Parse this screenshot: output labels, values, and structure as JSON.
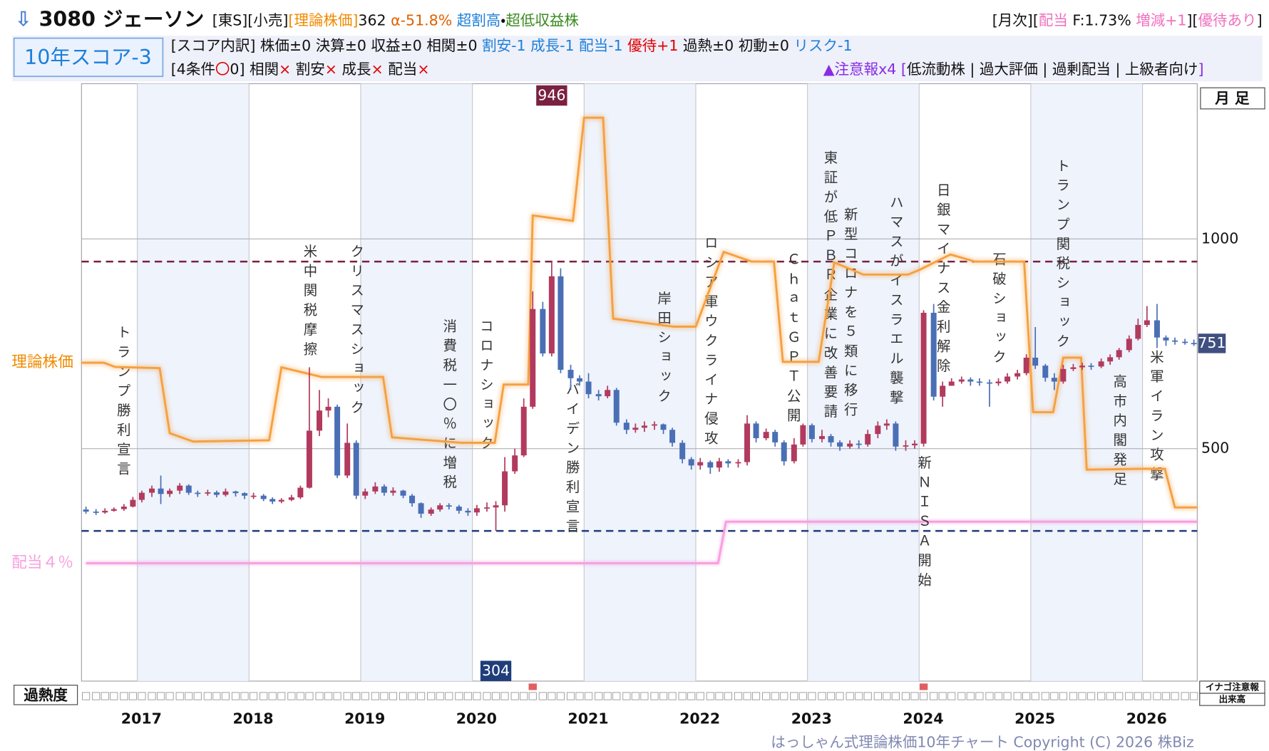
{
  "header": {
    "title": [
      {
        "text": "⇩",
        "color": "#4a7fd0"
      },
      {
        "text": " 3080 ジェーソン",
        "color": "#111111"
      }
    ],
    "tags": [
      {
        "text": "[東S][小売]",
        "color": "#111111"
      },
      {
        "text": "[理論株価]",
        "color": "#f08a00"
      },
      {
        "text": "362 ",
        "color": "#111111"
      },
      {
        "text": "α-51.8% ",
        "color": "#e06000"
      },
      {
        "text": "超割高",
        "color": "#1e7fd8"
      },
      {
        "text": "・",
        "color": "#111111"
      },
      {
        "text": "超低収益株",
        "color": "#3a8a20"
      }
    ],
    "right": [
      {
        "text": "[月次][",
        "color": "#111111"
      },
      {
        "text": "配当",
        "color": "#f070c0"
      },
      {
        "text": " F:1.73% ",
        "color": "#111111"
      },
      {
        "text": "増減+1",
        "color": "#f070c0"
      },
      {
        "text": "][",
        "color": "#111111"
      },
      {
        "text": "優待あり",
        "color": "#f070c0"
      },
      {
        "text": "]",
        "color": "#111111"
      }
    ]
  },
  "score": {
    "badge": "10年スコア-3",
    "line1": [
      {
        "text": "[スコア内訳] 株価±0 決算±0 収益±0 相関±0 ",
        "color": "#111111"
      },
      {
        "text": "割安-1 成長-1 配当-1 ",
        "color": "#1e7fd8"
      },
      {
        "text": "優待+1 ",
        "color": "#e00000"
      },
      {
        "text": "過熱±0 初動±0 ",
        "color": "#111111"
      },
      {
        "text": "リスク-1",
        "color": "#1e7fd8"
      }
    ],
    "line2": [
      {
        "text": "[4条件",
        "color": "#111111"
      },
      {
        "text": "〇",
        "color": "#e00000"
      },
      {
        "text": "0] 相関",
        "color": "#111111"
      },
      {
        "text": "×",
        "color": "#e00000"
      },
      {
        "text": " 割安",
        "color": "#111111"
      },
      {
        "text": "×",
        "color": "#e00000"
      },
      {
        "text": " 成長",
        "color": "#111111"
      },
      {
        "text": "×",
        "color": "#e00000"
      },
      {
        "text": " 配当",
        "color": "#111111"
      },
      {
        "text": "×",
        "color": "#e00000"
      }
    ],
    "warning": [
      {
        "text": "▲注意報x4 [",
        "color": "#8a2be2"
      },
      {
        "text": "低流動株 | 過大評価 | 過剰配当 | 上級者向け",
        "color": "#111111"
      },
      {
        "text": "]",
        "color": "#8a2be2"
      }
    ]
  },
  "chart_data": {
    "type": "candlestick",
    "period_label": "月 足",
    "x": [
      2016.54,
      2016.63,
      2016.71,
      2016.79,
      2016.88,
      2016.96,
      2017.04,
      2017.13,
      2017.21,
      2017.29,
      2017.38,
      2017.46,
      2017.54,
      2017.63,
      2017.71,
      2017.79,
      2017.88,
      2017.96,
      2018.04,
      2018.13,
      2018.21,
      2018.29,
      2018.38,
      2018.46,
      2018.54,
      2018.63,
      2018.71,
      2018.79,
      2018.88,
      2018.96,
      2019.04,
      2019.13,
      2019.21,
      2019.29,
      2019.38,
      2019.46,
      2019.54,
      2019.63,
      2019.71,
      2019.79,
      2019.88,
      2019.96,
      2020.04,
      2020.13,
      2020.21,
      2020.29,
      2020.38,
      2020.46,
      2020.54,
      2020.63,
      2020.71,
      2020.79,
      2020.88,
      2020.96,
      2021.04,
      2021.13,
      2021.21,
      2021.29,
      2021.38,
      2021.46,
      2021.54,
      2021.63,
      2021.71,
      2021.79,
      2021.88,
      2021.96,
      2022.04,
      2022.13,
      2022.21,
      2022.29,
      2022.38,
      2022.46,
      2022.54,
      2022.63,
      2022.71,
      2022.79,
      2022.88,
      2022.96,
      2023.04,
      2023.13,
      2023.21,
      2023.29,
      2023.38,
      2023.46,
      2023.54,
      2023.63,
      2023.71,
      2023.79,
      2023.88,
      2023.96,
      2024.04,
      2024.13,
      2024.21,
      2024.29,
      2024.38,
      2024.46,
      2024.54,
      2024.63,
      2024.71,
      2024.79,
      2024.88,
      2024.96,
      2025.04,
      2025.13,
      2025.21,
      2025.29,
      2025.38,
      2025.46,
      2025.54,
      2025.63,
      2025.71,
      2025.79,
      2025.88,
      2025.96,
      2026.04,
      2026.13,
      2026.21,
      2026.29,
      2026.38,
      2026.46
    ],
    "open": [
      355,
      350,
      348,
      352,
      356,
      362,
      378,
      395,
      405,
      392,
      400,
      412,
      395,
      393,
      396,
      390,
      398,
      394,
      388,
      388,
      380,
      374,
      378,
      384,
      407,
      543,
      591,
      600,
      436,
      514,
      388,
      398,
      410,
      395,
      400,
      388,
      370,
      345,
      355,
      365,
      362,
      352,
      348,
      358,
      360,
      365,
      446,
      484,
      600,
      833,
      727,
      911,
      688,
      668,
      660,
      630,
      625,
      640,
      562,
      545,
      550,
      555,
      558,
      545,
      514,
      475,
      460,
      468,
      455,
      470,
      465,
      468,
      560,
      525,
      540,
      515,
      470,
      510,
      556,
      523,
      530,
      515,
      505,
      512,
      510,
      535,
      555,
      560,
      505,
      508,
      512,
      824,
      624,
      650,
      660,
      665,
      660,
      658,
      656,
      660,
      672,
      680,
      717,
      698,
      669,
      660,
      690,
      694,
      698,
      696,
      708,
      718,
      735,
      762,
      795,
      806,
      765,
      758,
      755,
      752
    ],
    "high": [
      362,
      356,
      358,
      360,
      368,
      385,
      400,
      412,
      436,
      405,
      418,
      415,
      400,
      402,
      400,
      405,
      400,
      396,
      395,
      392,
      384,
      382,
      390,
      412,
      694,
      640,
      620,
      605,
      560,
      520,
      405,
      420,
      415,
      408,
      402,
      392,
      372,
      360,
      370,
      370,
      366,
      358,
      366,
      372,
      375,
      480,
      500,
      620,
      875,
      850,
      946,
      930,
      700,
      675,
      680,
      640,
      650,
      645,
      570,
      560,
      565,
      565,
      560,
      550,
      520,
      480,
      478,
      472,
      478,
      475,
      475,
      580,
      565,
      548,
      545,
      520,
      525,
      560,
      560,
      545,
      535,
      520,
      520,
      520,
      545,
      565,
      570,
      565,
      520,
      520,
      830,
      845,
      660,
      668,
      672,
      670,
      668,
      665,
      668,
      680,
      688,
      725,
      790,
      702,
      680,
      700,
      702,
      705,
      704,
      715,
      725,
      740,
      770,
      810,
      840,
      845,
      770,
      765,
      762,
      760
    ],
    "low": [
      345,
      342,
      345,
      350,
      352,
      360,
      372,
      385,
      368,
      385,
      392,
      390,
      385,
      388,
      384,
      386,
      386,
      380,
      380,
      375,
      368,
      370,
      375,
      380,
      405,
      530,
      575,
      430,
      430,
      380,
      380,
      392,
      388,
      388,
      382,
      362,
      335,
      340,
      350,
      355,
      345,
      340,
      340,
      350,
      304,
      350,
      440,
      480,
      595,
      720,
      720,
      680,
      640,
      650,
      620,
      615,
      620,
      555,
      535,
      538,
      540,
      545,
      535,
      505,
      465,
      450,
      450,
      440,
      445,
      455,
      455,
      460,
      515,
      520,
      505,
      460,
      465,
      505,
      515,
      515,
      505,
      495,
      500,
      500,
      505,
      525,
      545,
      495,
      495,
      500,
      505,
      615,
      600,
      650,
      655,
      650,
      650,
      600,
      650,
      655,
      665,
      675,
      690,
      660,
      640,
      655,
      685,
      688,
      688,
      692,
      700,
      712,
      730,
      758,
      790,
      740,
      745,
      748,
      748,
      745
    ],
    "close": [
      350,
      348,
      352,
      356,
      362,
      378,
      395,
      405,
      392,
      400,
      412,
      395,
      393,
      396,
      390,
      398,
      394,
      388,
      388,
      380,
      374,
      378,
      384,
      407,
      543,
      591,
      600,
      436,
      514,
      388,
      398,
      410,
      395,
      400,
      388,
      370,
      345,
      355,
      365,
      362,
      352,
      348,
      358,
      360,
      365,
      446,
      484,
      600,
      833,
      727,
      911,
      688,
      668,
      660,
      630,
      625,
      640,
      562,
      545,
      550,
      555,
      558,
      545,
      514,
      475,
      460,
      468,
      455,
      470,
      465,
      468,
      560,
      525,
      540,
      515,
      470,
      510,
      556,
      523,
      530,
      515,
      505,
      512,
      510,
      535,
      555,
      560,
      505,
      508,
      512,
      824,
      624,
      650,
      660,
      665,
      660,
      658,
      656,
      660,
      672,
      680,
      717,
      698,
      669,
      660,
      690,
      694,
      698,
      696,
      708,
      718,
      735,
      762,
      795,
      806,
      765,
      758,
      755,
      752,
      751
    ],
    "up_color": "#b23a5e",
    "down_color": "#4a6fb5",
    "xlim": [
      2016.5,
      2026.49
    ],
    "ylim": [
      -54,
      1370
    ],
    "xticks": [
      2017,
      2018,
      2019,
      2020,
      2021,
      2022,
      2023,
      2024,
      2025,
      2026
    ],
    "yticks": [
      500,
      1000
    ],
    "theory": {
      "name": "理論株価",
      "color": "#f5a040",
      "x": [
        2016.5,
        2016.7,
        2016.8,
        2017.2,
        2017.29,
        2017.5,
        2018.18,
        2018.29,
        2018.65,
        2019.2,
        2019.28,
        2019.9,
        2020.2,
        2020.28,
        2020.5,
        2020.54,
        2020.9,
        2021.0,
        2021.17,
        2021.26,
        2021.8,
        2022.0,
        2022.25,
        2022.5,
        2022.7,
        2022.78,
        2023.1,
        2023.24,
        2023.5,
        2023.9,
        2024.0,
        2024.28,
        2024.5,
        2024.94,
        2025.02,
        2025.2,
        2025.29,
        2025.45,
        2025.5,
        2026.0,
        2026.2,
        2026.29,
        2026.49
      ],
      "values": [
        705,
        705,
        695,
        692,
        537,
        517,
        520,
        694,
        671,
        671,
        527,
        514,
        514,
        653,
        653,
        1056,
        1043,
        1289,
        1289,
        810,
        791,
        791,
        969,
        946,
        946,
        707,
        707,
        944,
        915,
        915,
        926,
        963,
        946,
        946,
        587,
        587,
        717,
        717,
        450,
        452,
        452,
        360,
        360
      ]
    },
    "dividend": {
      "name": "配当４％",
      "color": "#f7a0e0",
      "x": [
        2016.54,
        2022.2,
        2022.27,
        2026.49
      ],
      "values": [
        227,
        227,
        326,
        326
      ]
    },
    "max_line": {
      "value": 946,
      "color": "#7a2040"
    },
    "min_line": {
      "value": 304,
      "color": "#1f3d7a"
    },
    "current_price": 751,
    "events": [
      {
        "text": "トランプ勝利宣言",
        "x": 2016.87,
        "y": 795
      },
      {
        "text": "米中関税摩擦",
        "x": 2018.54,
        "y": 988
      },
      {
        "text": "クリスマスショック",
        "x": 2018.96,
        "y": 988
      },
      {
        "text": "消費税一〇％に増税",
        "x": 2019.79,
        "y": 810
      },
      {
        "text": "コロナショック",
        "x": 2020.12,
        "y": 810
      },
      {
        "text": "バイデン勝利宣言",
        "x": 2020.89,
        "y": 659
      },
      {
        "text": "岸田ショック",
        "x": 2021.71,
        "y": 876
      },
      {
        "text": "ロシア軍ウクライナ侵攻",
        "x": 2022.13,
        "y": 1008
      },
      {
        "text": "ＣｈａｔＧＰＴ公開",
        "x": 2022.87,
        "y": 969
      },
      {
        "text": "東証が低ＰＢＲ企業に改善要請",
        "x": 2023.2,
        "y": 1211
      },
      {
        "text": "新型コロナを５類に移行",
        "x": 2023.38,
        "y": 1076
      },
      {
        "text": "ハマスがイスラエル襲撃",
        "x": 2023.79,
        "y": 1105
      },
      {
        "text": "新ＮＩＳＡ開始",
        "x": 2024.04,
        "y": 484
      },
      {
        "text": "日銀マイナス金利解除",
        "x": 2024.21,
        "y": 1134
      },
      {
        "text": "石破ショック",
        "x": 2024.71,
        "y": 969
      },
      {
        "text": "トランプ関税ショック",
        "x": 2025.28,
        "y": 1192
      },
      {
        "text": "高市内閣発足",
        "x": 2025.79,
        "y": 678
      },
      {
        "text": "米軍イラン攻撃",
        "x": 2026.12,
        "y": 736
      }
    ],
    "overheat_label": "過熱度",
    "alerts": {
      "name": "イナゴ注意報",
      "color": "#e06060",
      "x": [
        2020.54,
        2024.04
      ]
    },
    "volume_label": "出来高"
  },
  "footer": "はっしゃん式理論株価10年チャート Copyright (C) 2026 株Biz"
}
